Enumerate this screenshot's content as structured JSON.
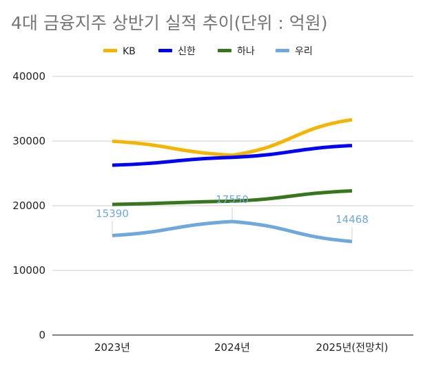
{
  "chart_data": {
    "type": "line",
    "title": "4대 금융지주 상반기 실적 추이(단위 : 억원)",
    "xlabel": "",
    "ylabel": "",
    "categories": [
      "2023년",
      "2024년",
      "2025년(전망치)"
    ],
    "ylim": [
      0,
      40000
    ],
    "yticks": [
      "0",
      "10000",
      "20000",
      "30000",
      "40000"
    ],
    "grid": true,
    "legend_position": "top",
    "series": [
      {
        "name": "KB",
        "color": "#f4b400",
        "values": [
          29967,
          27800,
          33300
        ]
      },
      {
        "name": "신한",
        "color": "#0000ff",
        "values": [
          26262,
          27470,
          29300
        ]
      },
      {
        "name": "하나",
        "color": "#38761d",
        "values": [
          20200,
          20700,
          22300
        ]
      },
      {
        "name": "우리",
        "color": "#6fa8dc",
        "values": [
          15390,
          17550,
          14468
        ],
        "data_labels": [
          "15390",
          "17550",
          "14468"
        ]
      }
    ]
  }
}
